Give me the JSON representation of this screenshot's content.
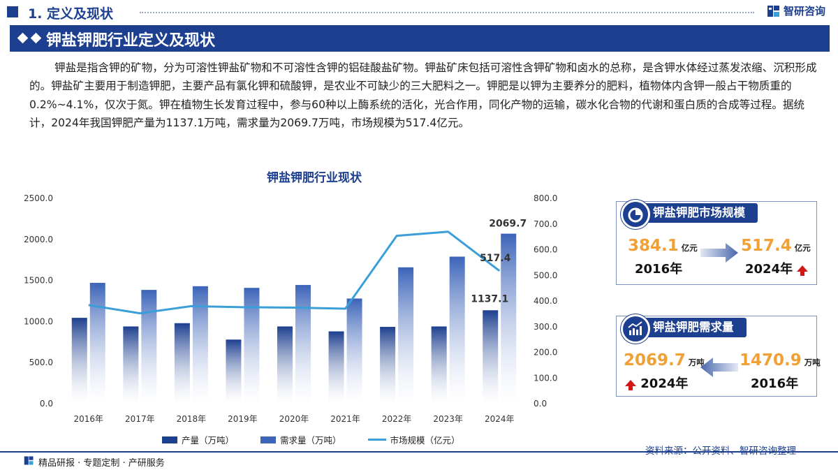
{
  "header": {
    "section_title": "1. 定义及现状",
    "brand_name": "智研咨询"
  },
  "banner": {
    "title": "钾盐钾肥行业定义及现状"
  },
  "intro_text": "钾盐是指含钾的矿物，分为可溶性钾盐矿物和不可溶性含钾的铝硅酸盐矿物。钾盐矿床包括可溶性含钾矿物和卤水的总称，是含钾水体经过蒸发浓缩、沉积形成的。钾盐矿主要用于制造钾肥，主要产品有氯化钾和硫酸钾，是农业不可缺少的三大肥料之一。钾肥是以钾为主要养分的肥料，植物体内含钾一般占干物质重的0.2%~4.1%，仅次于氮。钾在植物生长发育过程中，参与60种以上酶系统的活化，光合作用，同化产物的运输，碳水化合物的代谢和蛋白质的合成等过程。据统计，2024年我国钾肥产量为1137.1万吨，需求量为2069.7万吨，市场规模为517.4亿元。",
  "chart_data": {
    "type": "bar",
    "title": "钾盐钾肥行业现状",
    "categories": [
      "2016年",
      "2017年",
      "2018年",
      "2019年",
      "2020年",
      "2021年",
      "2022年",
      "2023年",
      "2024年"
    ],
    "series": [
      {
        "name": "产量（万吨）",
        "kind": "bar",
        "axis": "left",
        "color": "#1d3f8f",
        "values": [
          1045,
          940,
          980,
          780,
          940,
          880,
          935,
          940,
          1137.1
        ]
      },
      {
        "name": "需求量（万吨）",
        "kind": "bar",
        "axis": "left",
        "color": "#3b63b8",
        "values": [
          1470.9,
          1385,
          1430,
          1410,
          1445,
          1280,
          1660,
          1790,
          2069.7
        ]
      },
      {
        "name": "市场规模（亿元）",
        "kind": "line",
        "axis": "right",
        "color": "#3a9fd8",
        "values": [
          384.1,
          352,
          380,
          376,
          374,
          370,
          654,
          670,
          517.4
        ]
      }
    ],
    "y_left": {
      "min": 0,
      "max": 2500,
      "ticks": [
        "0.0",
        "500.0",
        "1000.0",
        "1500.0",
        "2000.0",
        "2500.0"
      ]
    },
    "y_right": {
      "min": 0,
      "max": 800,
      "ticks": [
        "0.0",
        "100.0",
        "200.0",
        "300.0",
        "400.0",
        "500.0",
        "600.0",
        "700.0",
        "800.0"
      ]
    },
    "data_labels": [
      "2069.7",
      "517.4",
      "1137.1"
    ],
    "grid": false,
    "legend_position": "bottom"
  },
  "market_card": {
    "title": "钾盐钾肥市场规模",
    "from_value": "384.1",
    "from_unit": "亿元",
    "from_year": "2016年",
    "to_value": "517.4",
    "to_unit": "亿元",
    "to_year": "2024年"
  },
  "demand_card": {
    "title": "钾盐钾肥需求量",
    "new_value": "2069.7",
    "new_unit": "万吨",
    "new_year": "2024年",
    "old_value": "1470.9",
    "old_unit": "万吨",
    "old_year": "2016年"
  },
  "footer": {
    "slogan": "精品研报 · 专题定制 · 产研服务",
    "source": "资料来源：公开资料、智研咨询整理"
  },
  "colors": {
    "brand": "#1d3f8f",
    "accent": "#f0a035",
    "up": "#d01818"
  }
}
